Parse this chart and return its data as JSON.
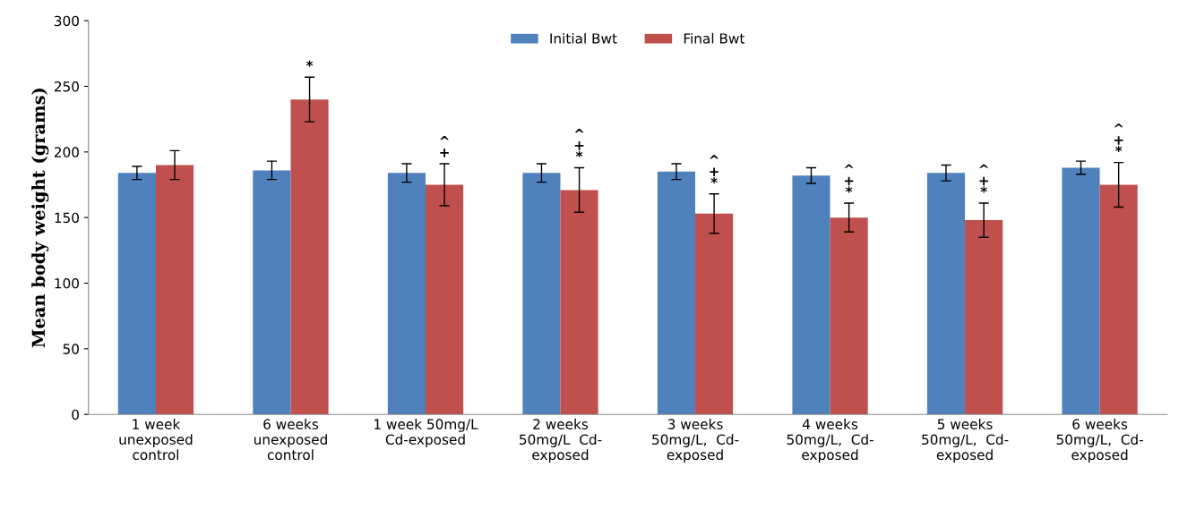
{
  "chart_data": {
    "type": "bar",
    "ylabel": "Mean body weight (grams)",
    "categories": [
      "1 week\nunexposed\ncontrol",
      "6 weeks\nunexposed\ncontrol",
      "1 week 50mg/L\nCd-exposed",
      "2 weeks\n50mg/L  Cd-\nexposed",
      "3 weeks\n50mg/L,  Cd-\nexposed",
      "4 weeks\n50mg/L,  Cd-\nexposed",
      "5 weeks\n50mg/L,  Cd-\nexposed",
      "6 weeks\n50mg/L,  Cd-\nexposed"
    ],
    "series": [
      {
        "name": "Initial Bwt",
        "color": "#4f81bd",
        "values": [
          184,
          186,
          184,
          184,
          185,
          182,
          184,
          188
        ],
        "errors": [
          5,
          7,
          7,
          7,
          6,
          6,
          6,
          5
        ]
      },
      {
        "name": "Final Bwt",
        "color": "#c0504d",
        "values": [
          190,
          240,
          175,
          171,
          153,
          150,
          148,
          175
        ],
        "errors": [
          11,
          17,
          16,
          17,
          15,
          11,
          13,
          17
        ],
        "value_labels": [
          null,
          "*",
          "^\n+",
          "^\n+\n*",
          "^\n+\n*",
          "^\n+\n*",
          "^\n+\n*",
          "^\n+\n*"
        ]
      }
    ],
    "ylim": [
      0,
      300
    ],
    "yticks": [
      0,
      50,
      100,
      150,
      200,
      250,
      300
    ],
    "grid": false,
    "legend": "top"
  }
}
